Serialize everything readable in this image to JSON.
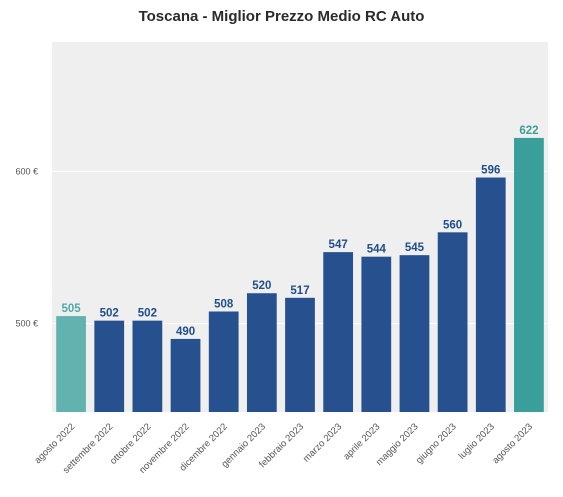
{
  "chart_data": {
    "type": "bar",
    "title": "Toscana - Miglior Prezzo Medio RC Auto",
    "xlabel": "",
    "ylabel": "",
    "categories": [
      "agosto 2022",
      "settembre 2022",
      "ottobre 2022",
      "novembre 2022",
      "dicembre 2022",
      "gennaio 2023",
      "febbraio 2023",
      "marzo 2023",
      "aprile 2023",
      "maggio 2023",
      "giugno 2023",
      "luglio 2023",
      "agosto 2023"
    ],
    "values": [
      505,
      502,
      502,
      490,
      508,
      520,
      517,
      547,
      544,
      545,
      560,
      596,
      622
    ],
    "ylim": [
      442,
      685
    ],
    "yticks": [
      500,
      600
    ],
    "ytick_labels": [
      "500 €",
      "600 €"
    ],
    "grid": true,
    "legend": "none",
    "colors": {
      "bar_default": "#26508e",
      "bar_first": "#62b3b0",
      "bar_last": "#3a9e9a",
      "label_default": "#1f4e8c",
      "label_first": "#4faaa7",
      "label_last": "#3a9e9a",
      "plot_background": "#efefef"
    }
  }
}
